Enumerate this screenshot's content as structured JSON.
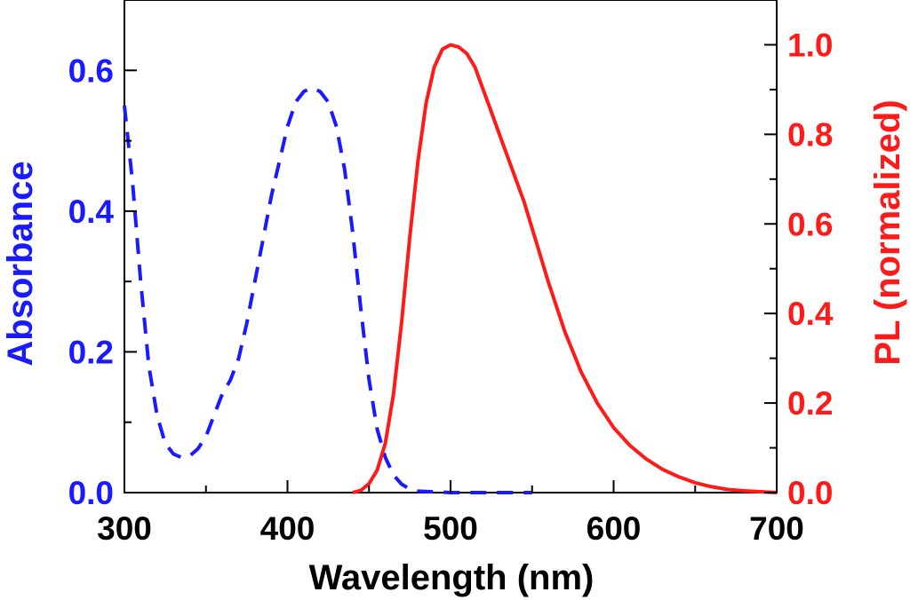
{
  "chart_data": {
    "type": "line",
    "xlabel": "Wavelength (nm)",
    "ylabel_left": "Absorbance",
    "ylabel_right": "PL (normalized)",
    "xlim": [
      300,
      700
    ],
    "ylim_left": [
      0,
      0.7
    ],
    "ylim_right": [
      0,
      1.1
    ],
    "x_ticks": [
      300,
      400,
      500,
      600,
      700
    ],
    "y_left_ticks": [
      0.0,
      0.2,
      0.4,
      0.6
    ],
    "y_right_ticks": [
      0.0,
      0.2,
      0.4,
      0.6,
      0.8,
      1.0
    ],
    "series": [
      {
        "name": "Absorbance",
        "axis": "left",
        "style": "dashed",
        "color": "#1a1aff",
        "x": [
          300,
          305,
          310,
          315,
          320,
          325,
          330,
          335,
          340,
          345,
          350,
          355,
          360,
          365,
          370,
          375,
          380,
          385,
          390,
          395,
          400,
          405,
          410,
          415,
          420,
          425,
          430,
          435,
          440,
          445,
          450,
          455,
          460,
          465,
          470,
          475,
          480,
          490,
          500,
          510,
          520,
          530,
          540,
          550
        ],
        "values": [
          0.55,
          0.44,
          0.3,
          0.18,
          0.11,
          0.07,
          0.055,
          0.05,
          0.052,
          0.062,
          0.08,
          0.11,
          0.14,
          0.16,
          0.19,
          0.24,
          0.3,
          0.36,
          0.42,
          0.47,
          0.52,
          0.555,
          0.57,
          0.575,
          0.57,
          0.555,
          0.52,
          0.46,
          0.37,
          0.26,
          0.16,
          0.09,
          0.05,
          0.025,
          0.012,
          0.005,
          0.002,
          0.001,
          0.0,
          0.0,
          0.0,
          0.0,
          0.0,
          0.0
        ]
      },
      {
        "name": "PL (normalized)",
        "axis": "right",
        "style": "solid",
        "color": "#ff1a1a",
        "x": [
          440,
          445,
          450,
          455,
          460,
          465,
          470,
          475,
          480,
          485,
          490,
          495,
          500,
          505,
          510,
          515,
          520,
          525,
          530,
          535,
          540,
          545,
          550,
          560,
          570,
          580,
          590,
          600,
          610,
          620,
          630,
          640,
          650,
          660,
          670,
          680,
          690,
          700
        ],
        "values": [
          0.0,
          0.005,
          0.02,
          0.05,
          0.11,
          0.22,
          0.38,
          0.57,
          0.74,
          0.87,
          0.95,
          0.99,
          1.0,
          0.995,
          0.98,
          0.95,
          0.9,
          0.85,
          0.8,
          0.75,
          0.7,
          0.65,
          0.59,
          0.47,
          0.36,
          0.27,
          0.2,
          0.145,
          0.105,
          0.075,
          0.052,
          0.035,
          0.022,
          0.013,
          0.007,
          0.004,
          0.002,
          0.0
        ]
      }
    ]
  }
}
